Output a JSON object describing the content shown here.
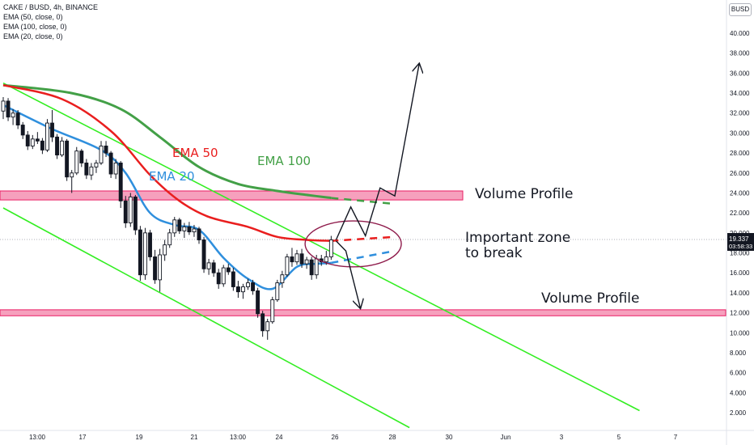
{
  "legend": {
    "symbol_line": "CAKE / BUSD, 4h, BINANCE",
    "ema50_line": "EMA (50, close, 0)",
    "ema100_line": "EMA (100, close, 0)",
    "ema20_line": "EMA (20, close, 0)"
  },
  "currency_badge": "BUSD",
  "price_tag": {
    "price": "19.337",
    "countdown": "03:58:33"
  },
  "annotations": {
    "ema50": "EMA 50",
    "ema100": "EMA 100",
    "ema20": "EMA 20",
    "volume_profile_upper": "Volume Profile",
    "volume_profile_lower": "Volume Profile",
    "important_zone_line1": "Important zone",
    "important_zone_line2": "to break"
  },
  "colors": {
    "ema50": "#e91e1e",
    "ema100": "#43a047",
    "ema20": "#2f8fdd",
    "channel": "#33ee22",
    "zone_fill": "#f48fb1",
    "zone_border": "#e91e63",
    "ellipse": "#8e1a4a",
    "candle_up": "#ffffff",
    "candle_down": "#131722"
  },
  "chart_data": {
    "type": "candlestick",
    "title": "CAKE / BUSD, 4h, BINANCE",
    "y_axis": {
      "ticks": [
        "40.000",
        "38.000",
        "36.000",
        "34.000",
        "32.000",
        "30.000",
        "28.000",
        "26.000",
        "24.000",
        "22.000",
        "20.000",
        "18.000",
        "16.000",
        "14.000",
        "12.000",
        "10.000",
        "8.000",
        "6.000",
        "4.000",
        "2.000"
      ],
      "ylim": [
        1,
        43
      ]
    },
    "x_axis": {
      "ticks": [
        "13:00",
        "17",
        "19",
        "21",
        "13:00",
        "24",
        "26",
        "28",
        "30",
        "Jun",
        "3",
        "5",
        "7"
      ]
    },
    "current_price": 19.337,
    "candles": [
      {
        "o": 32.2,
        "h": 33.6,
        "l": 31.4,
        "c": 33.2
      },
      {
        "o": 33.2,
        "h": 33.5,
        "l": 31.2,
        "c": 31.6
      },
      {
        "o": 31.6,
        "h": 32.4,
        "l": 30.8,
        "c": 32.0
      },
      {
        "o": 32.0,
        "h": 32.3,
        "l": 30.4,
        "c": 30.8
      },
      {
        "o": 30.8,
        "h": 31.1,
        "l": 29.4,
        "c": 29.8
      },
      {
        "o": 29.8,
        "h": 30.2,
        "l": 28.3,
        "c": 28.7
      },
      {
        "o": 28.7,
        "h": 29.8,
        "l": 28.4,
        "c": 29.4
      },
      {
        "o": 29.4,
        "h": 30.1,
        "l": 28.9,
        "c": 29.2
      },
      {
        "o": 29.2,
        "h": 29.5,
        "l": 27.9,
        "c": 28.3
      },
      {
        "o": 28.3,
        "h": 31.4,
        "l": 28.1,
        "c": 31.0
      },
      {
        "o": 31.0,
        "h": 32.3,
        "l": 29.1,
        "c": 29.6
      },
      {
        "o": 29.6,
        "h": 29.9,
        "l": 27.4,
        "c": 27.8
      },
      {
        "o": 27.8,
        "h": 29.6,
        "l": 27.6,
        "c": 29.2
      },
      {
        "o": 29.2,
        "h": 29.4,
        "l": 25.2,
        "c": 25.6
      },
      {
        "o": 25.6,
        "h": 26.3,
        "l": 24.0,
        "c": 26.0
      },
      {
        "o": 26.0,
        "h": 28.6,
        "l": 25.8,
        "c": 28.2
      },
      {
        "o": 28.2,
        "h": 28.4,
        "l": 26.6,
        "c": 27.0
      },
      {
        "o": 27.0,
        "h": 27.4,
        "l": 25.4,
        "c": 25.8
      },
      {
        "o": 25.8,
        "h": 27.0,
        "l": 25.3,
        "c": 26.6
      },
      {
        "o": 26.6,
        "h": 27.3,
        "l": 26.0,
        "c": 27.0
      },
      {
        "o": 27.0,
        "h": 29.2,
        "l": 26.8,
        "c": 28.7
      },
      {
        "o": 28.7,
        "h": 29.2,
        "l": 27.6,
        "c": 28.0
      },
      {
        "o": 28.0,
        "h": 28.2,
        "l": 25.5,
        "c": 25.9
      },
      {
        "o": 25.9,
        "h": 27.4,
        "l": 25.4,
        "c": 27.0
      },
      {
        "o": 27.0,
        "h": 27.2,
        "l": 22.5,
        "c": 23.2
      },
      {
        "o": 23.2,
        "h": 23.7,
        "l": 20.5,
        "c": 21.0
      },
      {
        "o": 21.0,
        "h": 24.0,
        "l": 20.6,
        "c": 23.6
      },
      {
        "o": 23.6,
        "h": 23.8,
        "l": 19.8,
        "c": 20.3
      },
      {
        "o": 20.3,
        "h": 20.7,
        "l": 15.2,
        "c": 15.8
      },
      {
        "o": 15.8,
        "h": 20.5,
        "l": 15.3,
        "c": 20.0
      },
      {
        "o": 20.0,
        "h": 20.3,
        "l": 17.2,
        "c": 17.6
      },
      {
        "o": 17.6,
        "h": 18.3,
        "l": 14.9,
        "c": 15.3
      },
      {
        "o": 15.3,
        "h": 18.4,
        "l": 14.1,
        "c": 17.8
      },
      {
        "o": 17.8,
        "h": 19.3,
        "l": 17.2,
        "c": 18.8
      },
      {
        "o": 18.8,
        "h": 20.4,
        "l": 18.5,
        "c": 20.0
      },
      {
        "o": 20.0,
        "h": 21.6,
        "l": 19.6,
        "c": 21.3
      },
      {
        "o": 21.3,
        "h": 21.5,
        "l": 19.9,
        "c": 20.2
      },
      {
        "o": 20.2,
        "h": 21.0,
        "l": 19.5,
        "c": 20.6
      },
      {
        "o": 20.6,
        "h": 21.1,
        "l": 19.8,
        "c": 20.1
      },
      {
        "o": 20.1,
        "h": 20.8,
        "l": 19.6,
        "c": 20.4
      },
      {
        "o": 20.4,
        "h": 20.6,
        "l": 18.9,
        "c": 19.3
      },
      {
        "o": 19.3,
        "h": 19.6,
        "l": 16.0,
        "c": 16.4
      },
      {
        "o": 16.4,
        "h": 17.4,
        "l": 15.8,
        "c": 17.0
      },
      {
        "o": 17.0,
        "h": 17.3,
        "l": 15.6,
        "c": 16.0
      },
      {
        "o": 16.0,
        "h": 16.4,
        "l": 14.4,
        "c": 14.9
      },
      {
        "o": 14.9,
        "h": 16.8,
        "l": 14.6,
        "c": 16.5
      },
      {
        "o": 16.5,
        "h": 16.9,
        "l": 15.8,
        "c": 16.1
      },
      {
        "o": 16.1,
        "h": 16.5,
        "l": 14.2,
        "c": 14.6
      },
      {
        "o": 14.6,
        "h": 15.2,
        "l": 13.5,
        "c": 14.1
      },
      {
        "o": 14.1,
        "h": 14.9,
        "l": 13.4,
        "c": 14.6
      },
      {
        "o": 14.6,
        "h": 15.4,
        "l": 14.3,
        "c": 15.0
      },
      {
        "o": 15.0,
        "h": 15.3,
        "l": 13.8,
        "c": 14.2
      },
      {
        "o": 14.2,
        "h": 14.5,
        "l": 11.5,
        "c": 11.9
      },
      {
        "o": 11.9,
        "h": 12.2,
        "l": 9.6,
        "c": 10.2
      },
      {
        "o": 10.2,
        "h": 11.4,
        "l": 9.3,
        "c": 11.1
      },
      {
        "o": 11.1,
        "h": 13.6,
        "l": 10.9,
        "c": 13.3
      },
      {
        "o": 13.3,
        "h": 15.3,
        "l": 13.1,
        "c": 15.0
      },
      {
        "o": 15.0,
        "h": 16.2,
        "l": 14.5,
        "c": 15.8
      },
      {
        "o": 15.8,
        "h": 17.9,
        "l": 15.6,
        "c": 17.6
      },
      {
        "o": 17.6,
        "h": 18.5,
        "l": 16.6,
        "c": 17.1
      },
      {
        "o": 17.1,
        "h": 18.3,
        "l": 16.8,
        "c": 17.9
      },
      {
        "o": 17.9,
        "h": 18.4,
        "l": 16.5,
        "c": 16.9
      },
      {
        "o": 16.9,
        "h": 17.6,
        "l": 16.4,
        "c": 17.3
      },
      {
        "o": 17.3,
        "h": 17.6,
        "l": 15.3,
        "c": 15.8
      },
      {
        "o": 15.8,
        "h": 17.8,
        "l": 15.4,
        "c": 17.4
      },
      {
        "o": 17.4,
        "h": 17.8,
        "l": 16.7,
        "c": 17.1
      },
      {
        "o": 17.1,
        "h": 18.2,
        "l": 16.8,
        "c": 17.6
      },
      {
        "o": 17.6,
        "h": 19.7,
        "l": 17.3,
        "c": 19.3
      }
    ],
    "ema20": [
      [
        0,
        32.8
      ],
      [
        10,
        30.4
      ],
      [
        20,
        28.3
      ],
      [
        25,
        26.0
      ],
      [
        30,
        22.0
      ],
      [
        35,
        20.8
      ],
      [
        40,
        20.3
      ],
      [
        45,
        17.5
      ],
      [
        50,
        15.4
      ],
      [
        55,
        14.4
      ],
      [
        60,
        16.6
      ],
      [
        64,
        16.9
      ],
      [
        67,
        17.0
      ]
    ],
    "ema50": [
      [
        0,
        34.8
      ],
      [
        12,
        33.4
      ],
      [
        22,
        30.2
      ],
      [
        30,
        25.8
      ],
      [
        36,
        23.2
      ],
      [
        42,
        21.6
      ],
      [
        50,
        20.6
      ],
      [
        56,
        19.6
      ],
      [
        62,
        19.3
      ],
      [
        67,
        19.2
      ]
    ],
    "ema100": [
      [
        0,
        34.8
      ],
      [
        14,
        34.0
      ],
      [
        24,
        32.4
      ],
      [
        32,
        29.6
      ],
      [
        40,
        26.6
      ],
      [
        48,
        24.9
      ],
      [
        56,
        24.2
      ],
      [
        62,
        23.8
      ],
      [
        67,
        23.5
      ]
    ],
    "projections": {
      "ema100": [
        [
          67,
          23.5
        ],
        [
          80,
          22.9
        ]
      ],
      "ema50": [
        [
          67,
          19.2
        ],
        [
          80,
          19.6
        ]
      ],
      "ema20": [
        [
          67,
          17.0
        ],
        [
          80,
          18.2
        ]
      ]
    },
    "volume_profile_zones": [
      [
        23.3,
        24.2
      ],
      [
        11.7,
        12.3
      ]
    ],
    "channel_upper": [
      [
        0,
        35.0
      ],
      [
        130,
        2.2
      ]
    ],
    "channel_lower": [
      [
        0,
        22.5
      ],
      [
        83,
        0.5
      ]
    ],
    "scenario_up": [
      [
        68,
        19.3
      ],
      [
        71,
        22.6
      ],
      [
        74,
        19.7
      ],
      [
        77,
        24.5
      ],
      [
        80,
        23.7
      ],
      [
        85,
        37.0
      ]
    ],
    "scenario_down": [
      [
        68,
        19.2
      ],
      [
        70,
        18.2
      ],
      [
        73,
        12.4
      ]
    ],
    "important_zone": {
      "bar_center": 71.5,
      "price_center": 18.9,
      "bar_halfwidth": 9.5,
      "price_halfheight": 2.3
    }
  }
}
